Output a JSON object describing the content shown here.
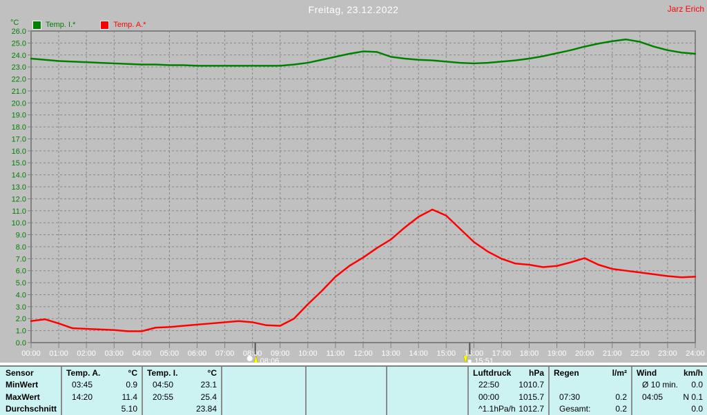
{
  "header": {
    "title": "Freitag, 23.12.2022",
    "author": "Jarz Erich"
  },
  "legend": {
    "axis_unit": "°C",
    "items": [
      {
        "label": "Temp. I.*",
        "color": "#008000"
      },
      {
        "label": "Temp. A.*",
        "color": "#ff0000"
      }
    ]
  },
  "chart_data": {
    "type": "line",
    "title": "Freitag, 23.12.2022",
    "ylabel": "°C",
    "ylim": [
      0,
      26
    ],
    "y_tick_step": 1.0,
    "xlim_hours": [
      0,
      24
    ],
    "grid": "dashed",
    "legend_position": "top-left",
    "y_tick_labels": [
      "26.0",
      "25.0",
      "24.0",
      "23.0",
      "22.0",
      "21.0",
      "20.0",
      "19.0",
      "18.0",
      "17.0",
      "16.0",
      "15.0",
      "14.0",
      "13.0",
      "12.0",
      "11.0",
      "10.0",
      "9.0",
      "8.0",
      "7.0",
      "6.0",
      "5.0",
      "4.0",
      "3.0",
      "2.0",
      "1.0",
      "0.0"
    ],
    "x_tick_labels": [
      "00:00",
      "01:00",
      "02:00",
      "03:00",
      "04:00",
      "05:00",
      "06:00",
      "07:00",
      "08:00",
      "09:00",
      "10:00",
      "11:00",
      "12:00",
      "13:00",
      "14:00",
      "15:00",
      "16:00",
      "17:00",
      "18:00",
      "19:00",
      "20:00",
      "21:00",
      "22:00",
      "23:00",
      "24:00"
    ],
    "sample_interval_hours": 0.5,
    "series": [
      {
        "name": "Temp. I.*",
        "color": "#008000",
        "values": [
          23.7,
          23.6,
          23.5,
          23.45,
          23.4,
          23.35,
          23.3,
          23.25,
          23.2,
          23.2,
          23.15,
          23.15,
          23.1,
          23.1,
          23.1,
          23.1,
          23.1,
          23.1,
          23.1,
          23.2,
          23.35,
          23.6,
          23.85,
          24.1,
          24.3,
          24.25,
          23.85,
          23.7,
          23.6,
          23.55,
          23.45,
          23.35,
          23.3,
          23.35,
          23.45,
          23.55,
          23.7,
          23.9,
          24.15,
          24.4,
          24.7,
          24.95,
          25.15,
          25.3,
          25.1,
          24.7,
          24.4,
          24.2,
          24.1
        ]
      },
      {
        "name": "Temp. A.*",
        "color": "#ff0000",
        "values": [
          1.8,
          1.95,
          1.6,
          1.2,
          1.15,
          1.1,
          1.05,
          0.95,
          0.95,
          1.25,
          1.3,
          1.4,
          1.5,
          1.6,
          1.7,
          1.8,
          1.7,
          1.45,
          1.4,
          2.0,
          3.2,
          4.3,
          5.5,
          6.4,
          7.1,
          7.9,
          8.6,
          9.6,
          10.5,
          11.1,
          10.6,
          9.5,
          8.4,
          7.6,
          7.0,
          6.6,
          6.5,
          6.3,
          6.4,
          6.7,
          7.05,
          6.5,
          6.15,
          6.0,
          5.85,
          5.7,
          5.55,
          5.45,
          5.5
        ]
      }
    ],
    "annotations": [
      {
        "type": "sunrise",
        "time": "08:06",
        "hour": 8.1
      },
      {
        "type": "sunset",
        "time": "15:51",
        "hour": 15.85
      }
    ]
  },
  "stats_table": {
    "row_labels": [
      "Sensor",
      "MinWert",
      "MaxWert",
      "Durchschnitt"
    ],
    "columns": [
      {
        "name": "Temp. A.",
        "unit": "°C",
        "rows": [
          [
            "03:45",
            "0.9"
          ],
          [
            "14:20",
            "11.4"
          ],
          [
            "",
            "5.10"
          ]
        ]
      },
      {
        "name": "Temp. I.",
        "unit": "°C",
        "rows": [
          [
            "04:50",
            "23.1"
          ],
          [
            "20:55",
            "25.4"
          ],
          [
            "",
            "23.84"
          ]
        ]
      },
      {
        "name": "",
        "unit": "",
        "rows": [
          [
            "",
            ""
          ],
          [
            "",
            ""
          ],
          [
            "",
            ""
          ]
        ]
      },
      {
        "name": "",
        "unit": "",
        "rows": [
          [
            "",
            ""
          ],
          [
            "",
            ""
          ],
          [
            "",
            ""
          ]
        ]
      },
      {
        "name": "",
        "unit": "",
        "rows": [
          [
            "",
            ""
          ],
          [
            "",
            ""
          ],
          [
            "",
            ""
          ]
        ]
      },
      {
        "name": "Luftdruck",
        "unit": "hPa",
        "rows": [
          [
            "22:50",
            "1010.7"
          ],
          [
            "00:00",
            "1015.7"
          ],
          [
            "^1.1hPa/h",
            "1012.7"
          ]
        ]
      },
      {
        "name": "Regen",
        "unit": "l/m²",
        "rows": [
          [
            "",
            ""
          ],
          [
            "07:30",
            "0.2"
          ],
          [
            "Gesamt:",
            "0.2"
          ]
        ]
      },
      {
        "name": "Wind",
        "unit": "km/h",
        "rows": [
          [
            "Ø 10 min.",
            "0.0"
          ],
          [
            "04:05",
            "N 0.1"
          ],
          [
            "",
            "0.0"
          ]
        ]
      }
    ]
  },
  "colors": {
    "background": "#c0c0c0",
    "panel_background": "#ccf2f2",
    "grid": "#858585",
    "axis": "#808080",
    "title_text": "#ffffff",
    "x_label_text": "#ffffff",
    "y_label_text": "#008000",
    "temp_i": "#008000",
    "temp_a": "#ff0000",
    "marker": "#ffff00"
  }
}
